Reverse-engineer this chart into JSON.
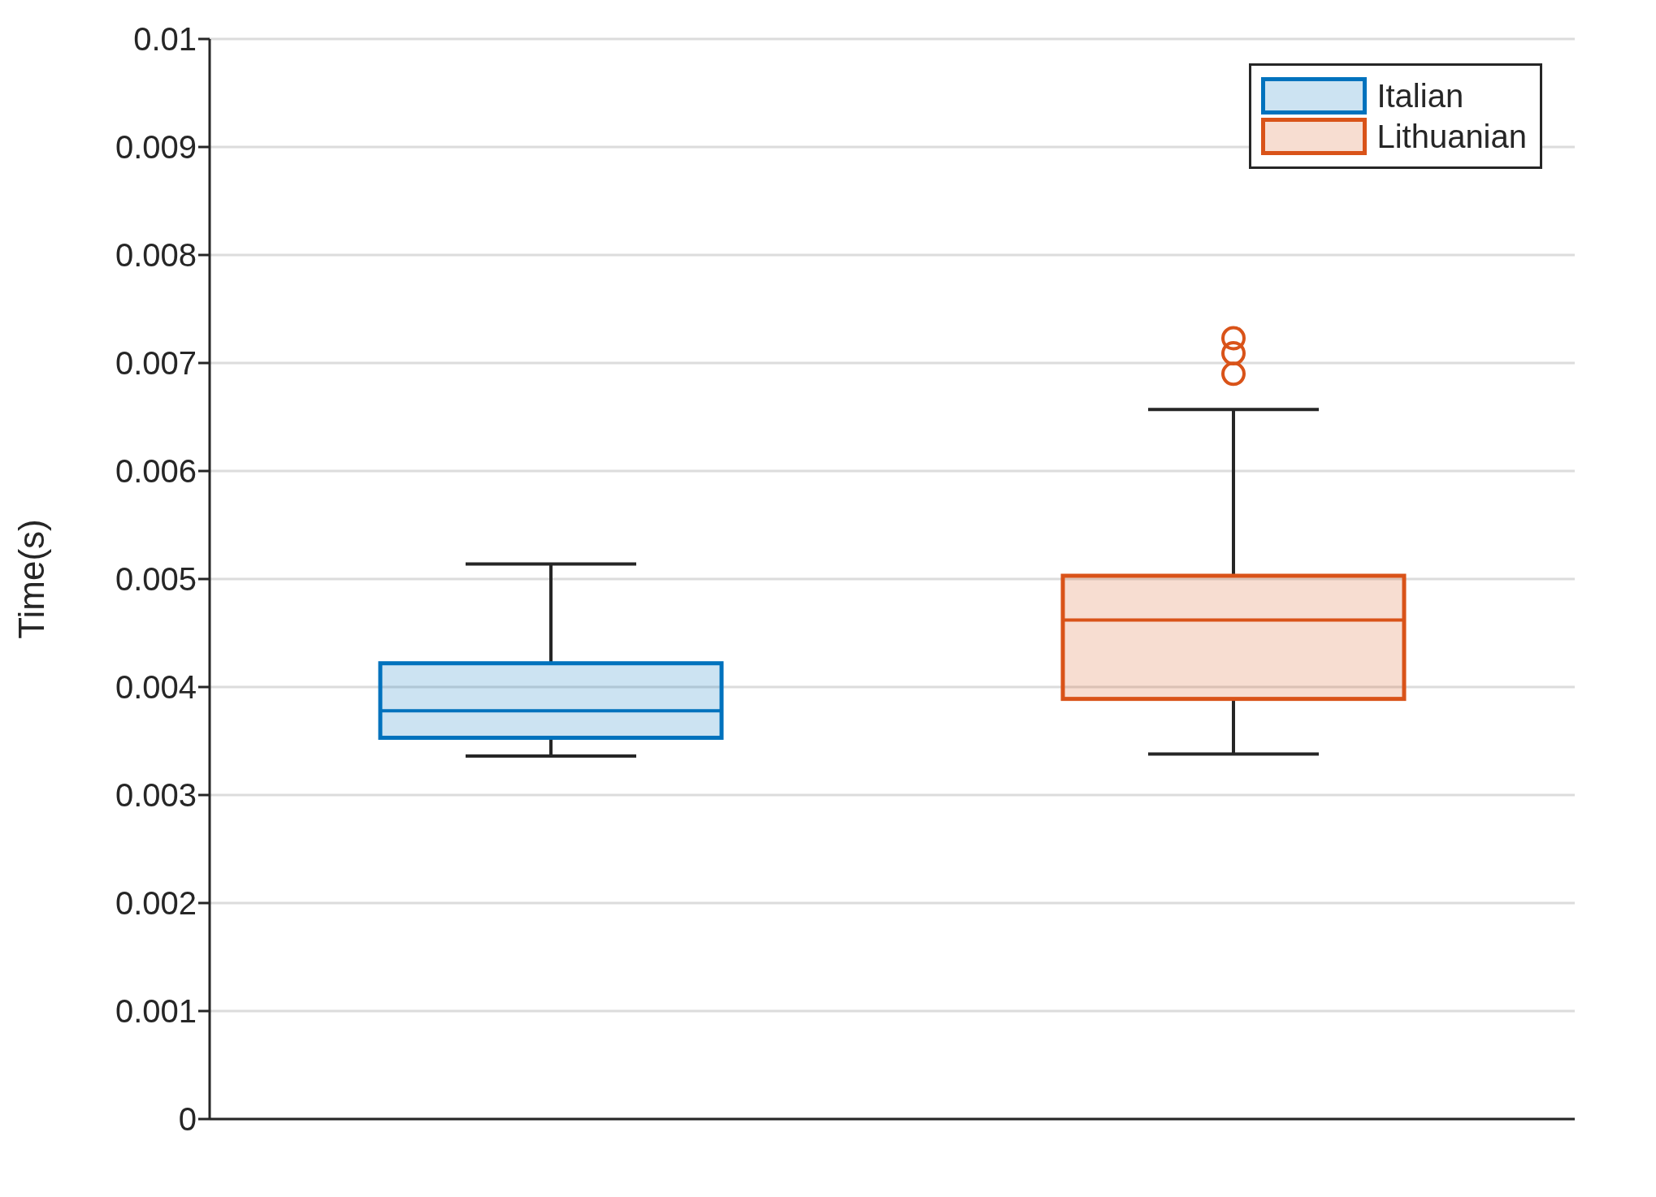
{
  "chart_data": {
    "type": "box",
    "ylabel": "Time(s)",
    "categories": [
      null,
      null
    ],
    "ylim": [
      0,
      0.01
    ],
    "yticks": [
      0,
      0.001,
      0.002,
      0.003,
      0.004,
      0.005,
      0.006,
      0.007,
      0.008,
      0.009,
      0.01
    ],
    "grid": "y",
    "legend": "top right",
    "marker": "circle",
    "series": [
      {
        "name": "Italian",
        "color": "#0072bd",
        "boxes": [
          {
            "low": 0.00336,
            "q1": 0.00353,
            "median": 0.00378,
            "q3": 0.00422,
            "high": 0.00514
          },
          null
        ]
      },
      {
        "name": "Lithuanian",
        "color": "#d95319",
        "boxes": [
          null,
          {
            "low": 0.00338,
            "q1": 0.00389,
            "median": 0.00462,
            "q3": 0.00503,
            "high": 0.00657,
            "outliers": [
              0.0069,
              0.00709,
              0.00723
            ]
          }
        ]
      }
    ]
  }
}
